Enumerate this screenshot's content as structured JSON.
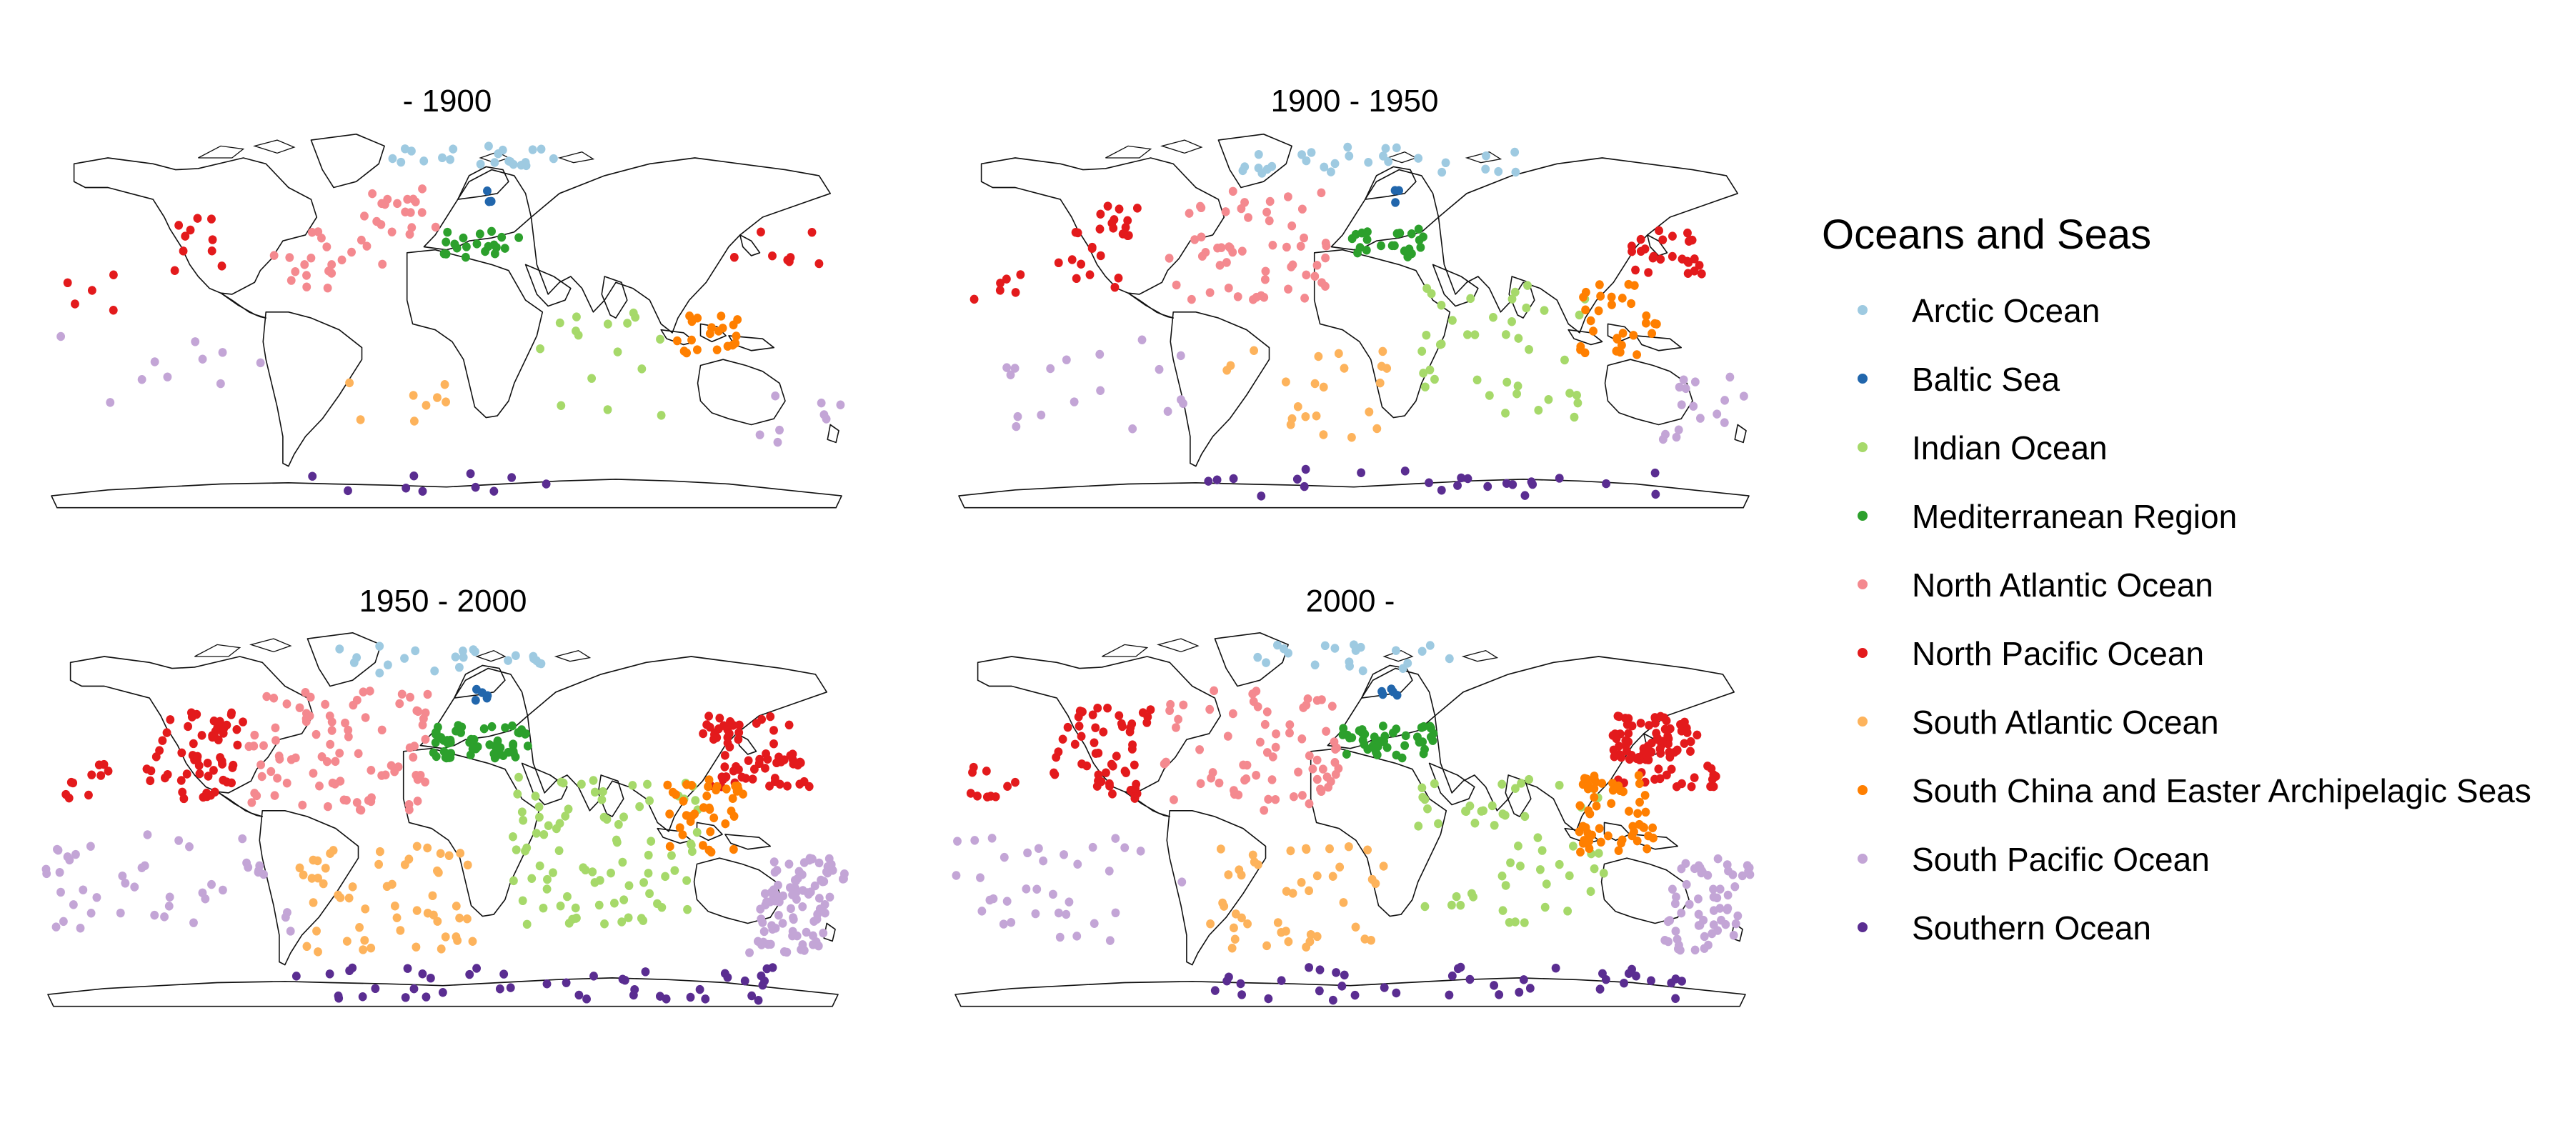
{
  "legend": {
    "title": "Oceans and Seas",
    "items": [
      {
        "key": "arctic",
        "label": "Arctic Ocean",
        "color": "#9ecae1"
      },
      {
        "key": "baltic",
        "label": "Baltic Sea",
        "color": "#2166ac"
      },
      {
        "key": "indian",
        "label": "Indian Ocean",
        "color": "#a6d96a"
      },
      {
        "key": "med",
        "label": "Mediterranean Region",
        "color": "#2ca02c"
      },
      {
        "key": "natl",
        "label": "North Atlantic Ocean",
        "color": "#f4898f"
      },
      {
        "key": "npac",
        "label": "North Pacific Ocean",
        "color": "#e31a1c"
      },
      {
        "key": "satl",
        "label": "South Atlantic Ocean",
        "color": "#fdb35c"
      },
      {
        "key": "scs",
        "label": "South China and Easter Archipelagic Seas",
        "color": "#ff7f00"
      },
      {
        "key": "spac",
        "label": "South Pacific Ocean",
        "color": "#c3a5d6"
      },
      {
        "key": "south",
        "label": "Southern Ocean",
        "color": "#5a2d91"
      }
    ]
  },
  "panels": [
    {
      "title": "- 1900"
    },
    {
      "title": "1900 - 1950"
    },
    {
      "title": "1950 - 2000"
    },
    {
      "title": "2000 -"
    }
  ],
  "chart_data": {
    "type": "scatter",
    "projection": "robinson",
    "grid": false,
    "legend_placement": "right",
    "panels": [
      {
        "period": "- 1900",
        "density": 1,
        "clusters": [
          {
            "region": "arctic",
            "lon": [
              -40,
              60
            ],
            "lat": [
              70,
              80
            ],
            "n": 22
          },
          {
            "region": "baltic",
            "lon": [
              15,
              25
            ],
            "lat": [
              56,
              62
            ],
            "n": 3
          },
          {
            "region": "natl",
            "lon": [
              -80,
              -40
            ],
            "lat": [
              20,
              45
            ],
            "n": 18
          },
          {
            "region": "natl",
            "lon": [
              -40,
              -5
            ],
            "lat": [
              30,
              62
            ],
            "n": 22
          },
          {
            "region": "med",
            "lon": [
              -5,
              35
            ],
            "lat": [
              33,
              45
            ],
            "n": 20
          },
          {
            "region": "npac",
            "lon": [
              -130,
              -100
            ],
            "lat": [
              20,
              50
            ],
            "n": 10
          },
          {
            "region": "npac",
            "lon": [
              -175,
              -140
            ],
            "lat": [
              10,
              35
            ],
            "n": 5
          },
          {
            "region": "npac",
            "lon": [
              130,
              175
            ],
            "lat": [
              25,
              45
            ],
            "n": 8
          },
          {
            "region": "indian",
            "lon": [
              40,
              100
            ],
            "lat": [
              -35,
              10
            ],
            "n": 16
          },
          {
            "region": "scs",
            "lon": [
              100,
              135
            ],
            "lat": [
              -8,
              10
            ],
            "n": 20
          },
          {
            "region": "spac",
            "lon": [
              -175,
              -80
            ],
            "lat": [
              -35,
              0
            ],
            "n": 10
          },
          {
            "region": "spac",
            "lon": [
              145,
              180
            ],
            "lat": [
              -45,
              -25
            ],
            "n": 8
          },
          {
            "region": "satl",
            "lon": [
              -45,
              0
            ],
            "lat": [
              -40,
              -10
            ],
            "n": 8
          },
          {
            "region": "south",
            "lon": [
              -70,
              60
            ],
            "lat": [
              -66,
              -58
            ],
            "n": 10
          }
        ]
      },
      {
        "period": "1900 - 1950",
        "density": 1.5,
        "clusters": [
          {
            "region": "arctic",
            "lon": [
              -60,
              100
            ],
            "lat": [
              68,
              80
            ],
            "n": 28
          },
          {
            "region": "baltic",
            "lon": [
              15,
              25
            ],
            "lat": [
              56,
              62
            ],
            "n": 3
          },
          {
            "region": "natl",
            "lon": [
              -85,
              -10
            ],
            "lat": [
              15,
              62
            ],
            "n": 55
          },
          {
            "region": "med",
            "lon": [
              -5,
              35
            ],
            "lat": [
              33,
              45
            ],
            "n": 22
          },
          {
            "region": "npac",
            "lon": [
              -135,
              -105
            ],
            "lat": [
              20,
              55
            ],
            "n": 25
          },
          {
            "region": "npac",
            "lon": [
              125,
              160
            ],
            "lat": [
              25,
              45
            ],
            "n": 25
          },
          {
            "region": "npac",
            "lon": [
              -175,
              -150
            ],
            "lat": [
              15,
              30
            ],
            "n": 6
          },
          {
            "region": "indian",
            "lon": [
              30,
              110
            ],
            "lat": [
              -35,
              25
            ],
            "n": 40
          },
          {
            "region": "scs",
            "lon": [
              100,
              135
            ],
            "lat": [
              -8,
              25
            ],
            "n": 30
          },
          {
            "region": "spac",
            "lon": [
              -175,
              -70
            ],
            "lat": [
              -40,
              0
            ],
            "n": 18
          },
          {
            "region": "spac",
            "lon": [
              145,
              180
            ],
            "lat": [
              -45,
              -15
            ],
            "n": 16
          },
          {
            "region": "satl",
            "lon": [
              -60,
              15
            ],
            "lat": [
              -45,
              -5
            ],
            "n": 22
          },
          {
            "region": "south",
            "lon": [
              -75,
              170
            ],
            "lat": [
              -68,
              -56
            ],
            "n": 24
          }
        ]
      },
      {
        "period": "1950 - 2000",
        "density": 2.6,
        "clusters": [
          {
            "region": "arctic",
            "lon": [
              -60,
              60
            ],
            "lat": [
              68,
              80
            ],
            "n": 22
          },
          {
            "region": "baltic",
            "lon": [
              15,
              25
            ],
            "lat": [
              56,
              62
            ],
            "n": 5
          },
          {
            "region": "natl",
            "lon": [
              -90,
              -5
            ],
            "lat": [
              10,
              62
            ],
            "n": 90
          },
          {
            "region": "med",
            "lon": [
              -5,
              40
            ],
            "lat": [
              32,
              46
            ],
            "n": 60
          },
          {
            "region": "npac",
            "lon": [
              -135,
              -95
            ],
            "lat": [
              15,
              55
            ],
            "n": 60
          },
          {
            "region": "npac",
            "lon": [
              120,
              165
            ],
            "lat": [
              20,
              50
            ],
            "n": 70
          },
          {
            "region": "npac",
            "lon": [
              -175,
              -150
            ],
            "lat": [
              15,
              30
            ],
            "n": 10
          },
          {
            "region": "indian",
            "lon": [
              30,
              115
            ],
            "lat": [
              -38,
              25
            ],
            "n": 90
          },
          {
            "region": "scs",
            "lon": [
              100,
              135
            ],
            "lat": [
              -8,
              25
            ],
            "n": 40
          },
          {
            "region": "spac",
            "lon": [
              -180,
              -70
            ],
            "lat": [
              -45,
              0
            ],
            "n": 45
          },
          {
            "region": "spac",
            "lon": [
              145,
              180
            ],
            "lat": [
              -50,
              -10
            ],
            "n": 90
          },
          {
            "region": "satl",
            "lon": [
              -65,
              15
            ],
            "lat": [
              -50,
              -5
            ],
            "n": 55
          },
          {
            "region": "south",
            "lon": [
              -75,
              170
            ],
            "lat": [
              -70,
              -56
            ],
            "n": 45
          }
        ]
      },
      {
        "period": "2000 -",
        "density": 2.6,
        "clusters": [
          {
            "region": "arctic",
            "lon": [
              -60,
              60
            ],
            "lat": [
              68,
              80
            ],
            "n": 20
          },
          {
            "region": "baltic",
            "lon": [
              15,
              25
            ],
            "lat": [
              56,
              62
            ],
            "n": 5
          },
          {
            "region": "natl",
            "lon": [
              -90,
              -5
            ],
            "lat": [
              10,
              62
            ],
            "n": 70
          },
          {
            "region": "med",
            "lon": [
              -5,
              40
            ],
            "lat": [
              32,
              46
            ],
            "n": 45
          },
          {
            "region": "npac",
            "lon": [
              -135,
              -95
            ],
            "lat": [
              15,
              55
            ],
            "n": 55
          },
          {
            "region": "npac",
            "lon": [
              120,
              165
            ],
            "lat": [
              20,
              50
            ],
            "n": 90
          },
          {
            "region": "npac",
            "lon": [
              -175,
              -150
            ],
            "lat": [
              15,
              30
            ],
            "n": 10
          },
          {
            "region": "indian",
            "lon": [
              30,
              115
            ],
            "lat": [
              -38,
              25
            ],
            "n": 55
          },
          {
            "region": "scs",
            "lon": [
              100,
              135
            ],
            "lat": [
              -8,
              25
            ],
            "n": 55
          },
          {
            "region": "spac",
            "lon": [
              -180,
              -70
            ],
            "lat": [
              -45,
              0
            ],
            "n": 35
          },
          {
            "region": "spac",
            "lon": [
              145,
              180
            ],
            "lat": [
              -50,
              -10
            ],
            "n": 60
          },
          {
            "region": "satl",
            "lon": [
              -65,
              15
            ],
            "lat": [
              -50,
              -5
            ],
            "n": 45
          },
          {
            "region": "south",
            "lon": [
              -75,
              170
            ],
            "lat": [
              -70,
              -56
            ],
            "n": 40
          }
        ]
      }
    ]
  }
}
